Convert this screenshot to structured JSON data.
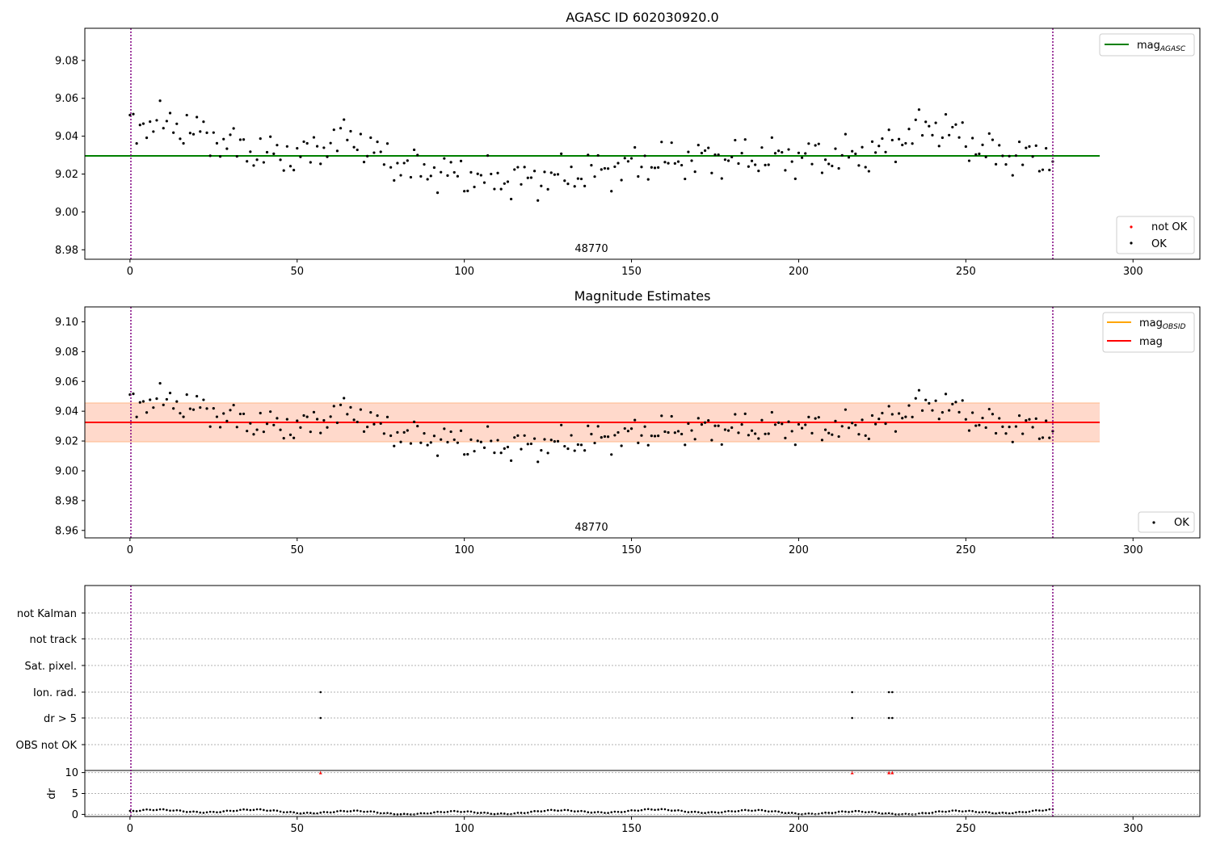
{
  "figure": {
    "top_title": "AGASC ID 602030920.0",
    "mid_title": "Magnitude Estimates",
    "obsid_label": "48770"
  },
  "legend": {
    "mag_agasc": "mag",
    "mag_agasc_sub": "AGASC",
    "mag_obsid": "mag",
    "mag_obsid_sub": "OBSID",
    "mag": "mag",
    "not_ok": "not OK",
    "ok": "OK"
  },
  "flags": {
    "row_labels": [
      "not Kalman",
      "not track",
      "Sat. pixel.",
      "Ion. rad.",
      "dr > 5",
      "OBS not OK"
    ],
    "dr_label": "dr",
    "dr_ticks": [
      "0",
      "5",
      "10"
    ]
  },
  "colors": {
    "agasc_line": "#008000",
    "mag_line": "#ff0000",
    "mag_obsid_line": "#ffa500",
    "band_inner": "#ffdcc8",
    "band_outer": "#ffe4ea",
    "obs_boundary": "#800080",
    "not_ok_marker": "#ff0000"
  },
  "chart_data": [
    {
      "type": "scatter",
      "title": "AGASC ID 602030920.0",
      "xlim": [
        -13.5,
        320
      ],
      "ylim": [
        8.975,
        9.097
      ],
      "xticks": [
        0,
        50,
        100,
        150,
        200,
        250,
        300
      ],
      "yticks": [
        8.98,
        9.0,
        9.02,
        9.04,
        9.06,
        9.08
      ],
      "obs_boundaries": [
        0,
        276
      ],
      "mag_agasc": 9.029,
      "mag_agasc_xrange": [
        -13.5,
        290
      ],
      "legend": [
        "mag_AGASC",
        "not OK",
        "OK"
      ]
    },
    {
      "type": "scatter",
      "title": "Magnitude Estimates",
      "xlim": [
        -13.5,
        320
      ],
      "ylim": [
        8.955,
        9.11
      ],
      "xticks": [
        0,
        50,
        100,
        150,
        200,
        250,
        300
      ],
      "yticks": [
        8.96,
        8.98,
        9.0,
        9.02,
        9.04,
        9.06,
        9.08,
        9.1
      ],
      "obs_boundaries": [
        0,
        276
      ],
      "mag": 9.032,
      "mag_band": [
        9.019,
        9.045
      ],
      "mag_band_xrange": [
        -13.5,
        290
      ],
      "legend": [
        "mag_OBSID",
        "mag",
        "OK"
      ]
    },
    {
      "type": "scatter",
      "title": "",
      "xlim": [
        -13.5,
        320
      ],
      "xticks": [
        0,
        50,
        100,
        150,
        200,
        250,
        300
      ],
      "flag_rows": [
        "not Kalman",
        "not track",
        "Sat. pixel.",
        "Ion. rad.",
        "dr > 5",
        "OBS not OK"
      ],
      "flag_points": {
        "Ion. rad.": [
          57,
          216,
          227,
          228
        ],
        "dr > 5": [
          57,
          216,
          227,
          228
        ]
      },
      "dr_ylim": [
        -0.5,
        10.5
      ],
      "dr_outliers": [
        57,
        216,
        227,
        228
      ],
      "dr_outlier_value": 10
    }
  ]
}
